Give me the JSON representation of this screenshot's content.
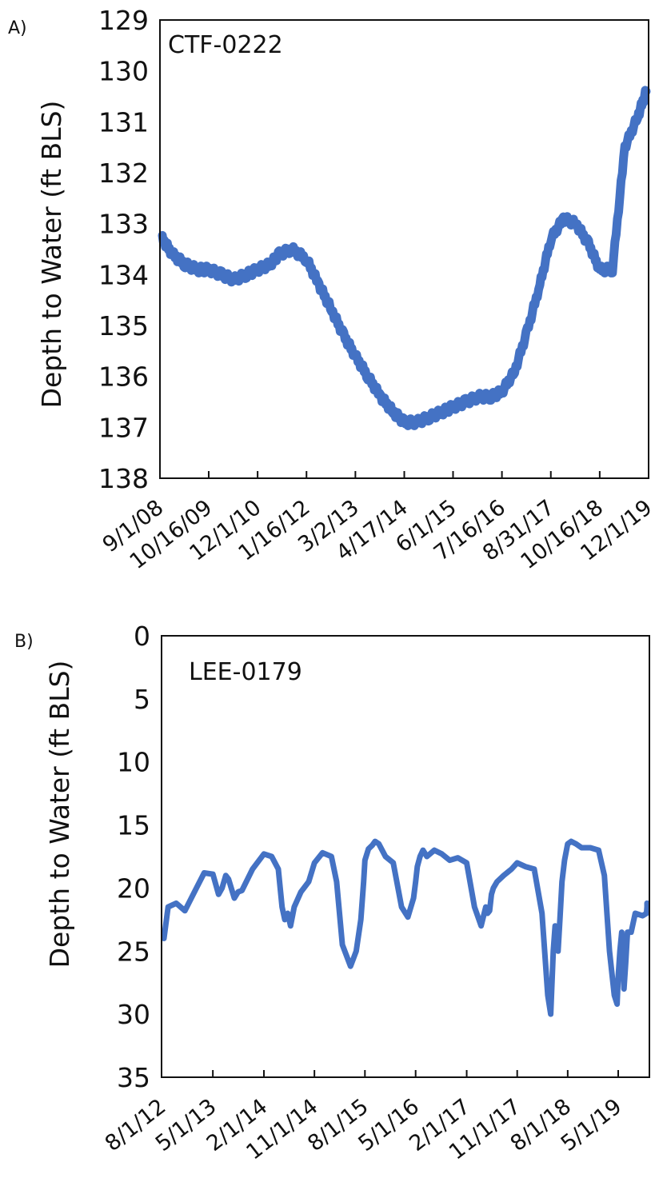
{
  "chart_data": [
    {
      "type": "line",
      "panel_label": "A)",
      "annotation": "CTF-0222",
      "ylabel": "Depth to Water (ft BLS)",
      "y_inverted": true,
      "ylim": [
        129,
        138
      ],
      "yticks": [
        "129",
        "130",
        "131",
        "132",
        "133",
        "134",
        "135",
        "136",
        "137",
        "138"
      ],
      "xticks": [
        "9/1/08",
        "10/16/09",
        "12/1/10",
        "1/16/12",
        "3/2/13",
        "4/17/14",
        "6/1/15",
        "7/16/16",
        "8/31/17",
        "10/16/18",
        "12/1/19"
      ],
      "color": "#4472C4",
      "series": [
        {
          "x": [
            "9/1/08",
            "12/15/08",
            "3/31/09",
            "7/14/09",
            "10/16/09",
            "2/1/10",
            "5/15/10",
            "8/30/10",
            "12/1/10",
            "3/15/11",
            "6/1/11",
            "9/15/11",
            "1/16/12",
            "4/30/12",
            "8/15/12",
            "11/25/12",
            "3/2/13",
            "6/15/13",
            "10/1/13",
            "1/15/14",
            "4/17/14",
            "8/1/14",
            "11/15/14",
            "2/28/15",
            "6/1/15",
            "9/15/15",
            "12/31/15",
            "4/15/16",
            "7/16/16",
            "10/31/16",
            "2/15/17",
            "5/31/17",
            "8/31/17",
            "12/15/17",
            "3/31/18",
            "7/15/18",
            "10/16/18",
            "1/31/19",
            "5/15/19",
            "8/31/19",
            "12/1/19"
          ],
          "y": [
            133.3,
            133.6,
            133.8,
            133.9,
            133.9,
            134.0,
            134.1,
            134.0,
            133.9,
            133.8,
            133.6,
            133.5,
            133.7,
            134.2,
            134.7,
            135.2,
            135.6,
            136.0,
            136.4,
            136.7,
            136.9,
            136.9,
            136.8,
            136.7,
            136.6,
            136.5,
            136.4,
            136.4,
            136.3,
            135.9,
            135.1,
            134.2,
            133.3,
            132.9,
            133.0,
            133.4,
            133.9,
            133.9,
            131.5,
            130.9,
            130.4
          ]
        }
      ]
    },
    {
      "type": "line",
      "panel_label": "B)",
      "annotation": "LEE-0179",
      "ylabel": "Depth to Water (ft BLS)",
      "y_inverted": true,
      "ylim": [
        0,
        35
      ],
      "yticks": [
        "0",
        "5",
        "10",
        "15",
        "20",
        "25",
        "30",
        "35"
      ],
      "xticks": [
        "8/1/12",
        "5/1/13",
        "2/1/14",
        "11/1/14",
        "8/1/15",
        "5/1/16",
        "2/1/17",
        "11/1/17",
        "8/1/18",
        "5/1/19"
      ],
      "color": "#4472C4",
      "series": [
        {
          "x": [
            "8/1/12",
            "9/1/12",
            "10/15/12",
            "12/1/12",
            "2/1/13",
            "3/15/13",
            "5/1/13",
            "6/1/13",
            "6/20/13",
            "7/10/13",
            "7/25/13",
            "8/25/13",
            "9/15/13",
            "10/5/13",
            "12/1/13",
            "2/1/14",
            "3/15/14",
            "4/20/14",
            "5/10/14",
            "5/25/14",
            "6/10/14",
            "6/25/14",
            "7/15/14",
            "8/20/14",
            "10/1/14",
            "11/1/14",
            "12/15/14",
            "2/1/15",
            "3/1/15",
            "4/1/15",
            "5/15/15",
            "6/15/15",
            "7/10/15",
            "7/25/15",
            "8/1/15",
            "8/20/15",
            "9/10/15",
            "9/25/15",
            "10/15/15",
            "11/20/15",
            "1/1/16",
            "2/15/16",
            "3/20/16",
            "4/20/16",
            "5/1/16",
            "5/10/16",
            "5/25/16",
            "6/10/16",
            "7/1/16",
            "8/10/16",
            "9/20/16",
            "11/1/16",
            "12/15/16",
            "2/1/17",
            "3/15/17",
            "4/20/17",
            "5/15/17",
            "5/25/17",
            "6/5/17",
            "6/15/17",
            "6/25/17",
            "7/15/17",
            "8/20/17",
            "10/1/17",
            "11/1/17",
            "12/15/17",
            "2/1/18",
            "3/15/18",
            "4/15/18",
            "5/1/18",
            "5/15/18",
            "5/25/18",
            "6/10/18",
            "6/20/18",
            "7/1/18",
            "7/15/18",
            "8/1/18",
            "8/20/18",
            "9/15/18",
            "10/15/18",
            "12/1/18",
            "1/15/19",
            "2/15/19",
            "3/15/19",
            "4/10/19",
            "4/25/19",
            "5/1/19",
            "5/10/19",
            "5/20/19",
            "6/1/19",
            "6/10/19",
            "6/20/19",
            "7/10/19",
            "8/1/19",
            "9/10/19",
            "10/1/19",
            "11/1/19",
            "12/1/19",
            "1/15/20"
          ],
          "y": [
            24.0,
            21.5,
            21.2,
            21.8,
            20.0,
            18.8,
            18.9,
            20.5,
            20.0,
            19.0,
            19.3,
            20.8,
            20.3,
            20.2,
            18.5,
            17.3,
            17.5,
            18.5,
            21.5,
            22.5,
            22.0,
            23.0,
            21.5,
            20.3,
            19.5,
            18.0,
            17.2,
            17.5,
            19.5,
            24.5,
            26.2,
            25.0,
            22.5,
            19.5,
            17.8,
            16.9,
            16.6,
            16.3,
            16.5,
            17.5,
            18.0,
            21.5,
            22.3,
            20.8,
            19.5,
            18.3,
            17.5,
            17.0,
            17.5,
            17.0,
            17.3,
            17.8,
            17.6,
            18.0,
            21.5,
            23.0,
            21.5,
            22.0,
            21.8,
            20.5,
            20.0,
            19.5,
            19.0,
            18.5,
            18.0,
            18.3,
            18.5,
            22.0,
            28.5,
            30.0,
            25.0,
            23.0,
            25.0,
            22.5,
            19.5,
            17.8,
            16.5,
            16.3,
            16.5,
            16.8,
            16.8,
            17.0,
            19.0,
            25.0,
            28.5,
            29.2,
            27.0,
            25.0,
            23.5,
            28.0,
            26.0,
            23.5,
            23.5,
            22.0,
            22.2,
            22.0,
            21.5,
            21.5,
            21.2
          ]
        }
      ]
    }
  ]
}
